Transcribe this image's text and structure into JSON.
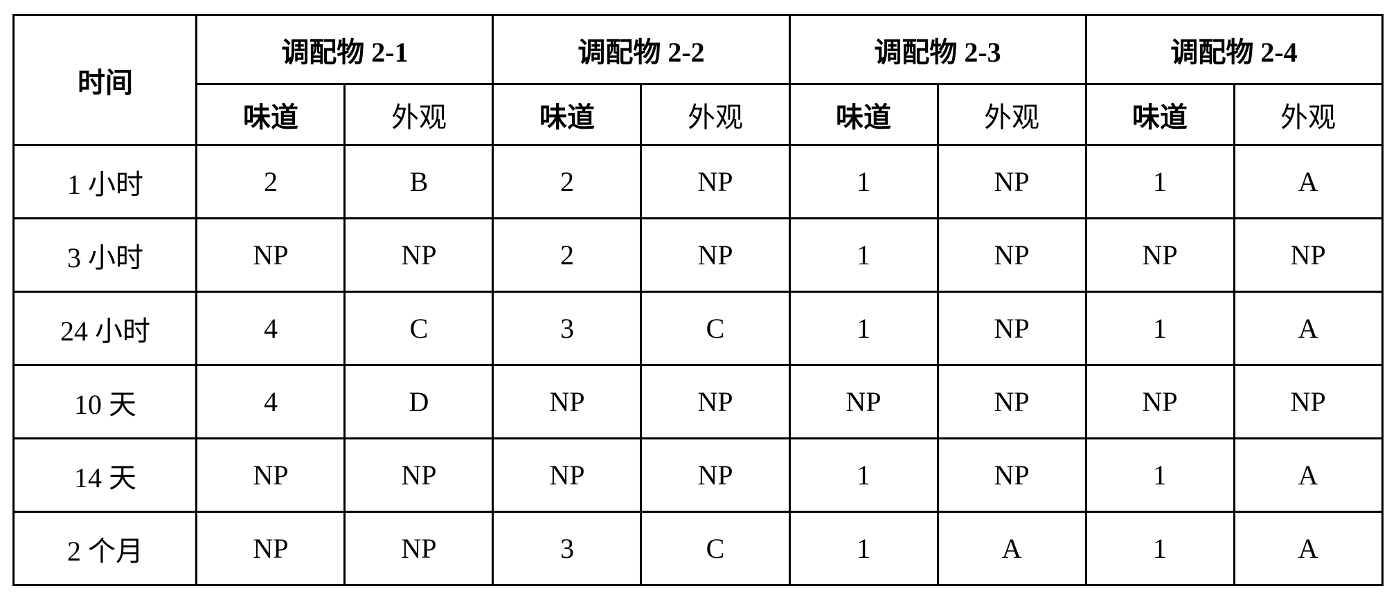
{
  "table": {
    "border_color": "#000000",
    "background_color": "#ffffff",
    "text_color": "#000000",
    "header_fontsize": 40,
    "cell_fontsize": 40,
    "columns": {
      "time": "时间",
      "groups": [
        {
          "label": "调配物 2-1",
          "sub": [
            "味道",
            "外观"
          ]
        },
        {
          "label": "调配物 2-2",
          "sub": [
            "味道",
            "外观"
          ]
        },
        {
          "label": "调配物 2-3",
          "sub": [
            "味道",
            "外观"
          ]
        },
        {
          "label": "调配物 2-4",
          "sub": [
            "味道",
            "外观"
          ]
        }
      ]
    },
    "rows": [
      {
        "time": "1 小时",
        "cells": [
          "2",
          "B",
          "2",
          "NP",
          "1",
          "NP",
          "1",
          "A"
        ]
      },
      {
        "time": "3 小时",
        "cells": [
          "NP",
          "NP",
          "2",
          "NP",
          "1",
          "NP",
          "NP",
          "NP"
        ]
      },
      {
        "time": "24 小时",
        "cells": [
          "4",
          "C",
          "3",
          "C",
          "1",
          "NP",
          "1",
          "A"
        ]
      },
      {
        "time": "10 天",
        "cells": [
          "4",
          "D",
          "NP",
          "NP",
          "NP",
          "NP",
          "NP",
          "NP"
        ]
      },
      {
        "time": "14 天",
        "cells": [
          "NP",
          "NP",
          "NP",
          "NP",
          "1",
          "NP",
          "1",
          "A"
        ]
      },
      {
        "time": "2 个月",
        "cells": [
          "NP",
          "NP",
          "3",
          "C",
          "1",
          "A",
          "1",
          "A"
        ]
      }
    ]
  }
}
